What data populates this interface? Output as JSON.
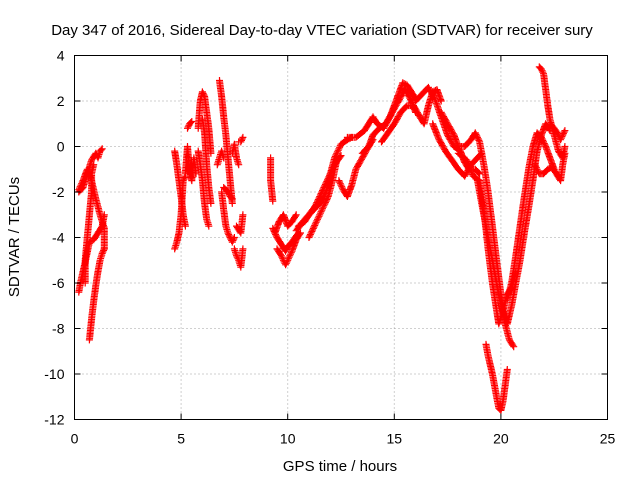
{
  "chart_data": {
    "type": "scatter",
    "title": "Day 347 of 2016, Sidereal Day-to-day VTEC variation (SDTVAR) for receiver sury",
    "xlabel": "GPS time / hours",
    "ylabel": "SDTVAR / TECUs",
    "xlim": [
      0,
      25
    ],
    "ylim": [
      -12,
      4
    ],
    "xticks": [
      0,
      5,
      10,
      15,
      20,
      25
    ],
    "yticks": [
      -12,
      -10,
      -8,
      -6,
      -4,
      -2,
      0,
      2,
      4
    ],
    "grid": true,
    "marker": "plus",
    "color": "#ff0000",
    "series_segments": [
      [
        [
          0.2,
          -2.0
        ],
        [
          0.4,
          -1.8
        ],
        [
          0.6,
          -1.2
        ],
        [
          0.8,
          -0.6
        ],
        [
          1.0,
          -0.3
        ],
        [
          1.1,
          -0.5
        ],
        [
          1.2,
          -0.2
        ],
        [
          1.3,
          -0.1
        ]
      ],
      [
        [
          0.2,
          -1.9
        ],
        [
          0.4,
          -1.5
        ],
        [
          0.6,
          -1.0
        ],
        [
          0.8,
          -1.5
        ],
        [
          1.0,
          -2.3
        ],
        [
          1.2,
          -3.0
        ],
        [
          1.4,
          -3.6
        ],
        [
          1.4,
          -4.5
        ]
      ],
      [
        [
          0.2,
          -6.4
        ],
        [
          0.3,
          -5.9
        ],
        [
          0.5,
          -5.1
        ],
        [
          0.7,
          -4.2
        ],
        [
          0.9,
          -4.1
        ],
        [
          1.1,
          -3.8
        ],
        [
          1.3,
          -3.5
        ],
        [
          1.4,
          -3.0
        ]
      ],
      [
        [
          0.7,
          -8.5
        ],
        [
          0.8,
          -7.6
        ],
        [
          0.9,
          -6.8
        ],
        [
          1.0,
          -6.1
        ],
        [
          1.1,
          -5.5
        ],
        [
          1.2,
          -5.0
        ],
        [
          1.3,
          -4.7
        ],
        [
          1.4,
          -4.5
        ]
      ],
      [
        [
          0.5,
          -6.0
        ],
        [
          0.5,
          -5.0
        ],
        [
          0.6,
          -4.0
        ],
        [
          0.7,
          -3.0
        ],
        [
          0.8,
          -2.0
        ],
        [
          0.8,
          -1.2
        ],
        [
          0.9,
          -0.8
        ]
      ],
      [
        [
          4.7,
          -0.2
        ],
        [
          4.8,
          -0.8
        ],
        [
          4.9,
          -1.5
        ],
        [
          5.0,
          -2.2
        ],
        [
          5.1,
          -3.0
        ],
        [
          5.2,
          -3.5
        ]
      ],
      [
        [
          4.7,
          -4.5
        ],
        [
          4.8,
          -4.2
        ],
        [
          4.9,
          -3.8
        ],
        [
          5.0,
          -3.0
        ],
        [
          5.1,
          -1.5
        ],
        [
          5.2,
          -1.3
        ]
      ],
      [
        [
          5.2,
          -1.2
        ],
        [
          5.3,
          0.0
        ],
        [
          5.4,
          -1.1
        ],
        [
          5.5,
          -1.5
        ],
        [
          5.6,
          -0.5
        ],
        [
          5.7,
          -1.2
        ]
      ],
      [
        [
          5.3,
          0.8
        ],
        [
          5.4,
          1.0
        ],
        [
          5.5,
          1.1
        ]
      ],
      [
        [
          5.8,
          0.8
        ],
        [
          5.9,
          2.0
        ],
        [
          6.0,
          2.4
        ],
        [
          6.1,
          2.2
        ],
        [
          6.2,
          1.5
        ],
        [
          6.3,
          0.8
        ],
        [
          6.4,
          -0.3
        ]
      ],
      [
        [
          5.8,
          -0.2
        ],
        [
          5.9,
          -0.8
        ],
        [
          6.0,
          -1.5
        ],
        [
          6.1,
          -2.5
        ],
        [
          6.2,
          -3.2
        ],
        [
          6.3,
          -3.5
        ]
      ],
      [
        [
          6.0,
          1.2
        ],
        [
          6.1,
          0.6
        ],
        [
          6.2,
          -0.8
        ],
        [
          6.3,
          -1.8
        ],
        [
          6.4,
          -2.5
        ]
      ],
      [
        [
          6.7,
          -0.8
        ],
        [
          6.8,
          -0.5
        ],
        [
          6.9,
          -0.2
        ],
        [
          7.0,
          -0.5
        ]
      ],
      [
        [
          6.8,
          2.9
        ],
        [
          6.9,
          2.2
        ],
        [
          7.0,
          1.3
        ],
        [
          7.1,
          0.5
        ],
        [
          7.2,
          -0.5
        ],
        [
          7.3,
          -1.5
        ],
        [
          7.4,
          -2.5
        ]
      ],
      [
        [
          6.9,
          -2.0
        ],
        [
          7.0,
          -2.8
        ],
        [
          7.1,
          -3.5
        ],
        [
          7.2,
          -3.8
        ],
        [
          7.4,
          -4.2
        ],
        [
          7.5,
          -4.0
        ]
      ],
      [
        [
          7.0,
          -1.8
        ],
        [
          7.2,
          -2.0
        ],
        [
          7.3,
          -2.2
        ],
        [
          7.4,
          -2.3
        ]
      ],
      [
        [
          7.4,
          -0.3
        ],
        [
          7.5,
          0.1
        ],
        [
          7.6,
          -0.5
        ],
        [
          7.7,
          -0.8
        ]
      ],
      [
        [
          7.5,
          -4.5
        ],
        [
          7.6,
          -4.8
        ],
        [
          7.7,
          -5.0
        ],
        [
          7.8,
          -5.3
        ],
        [
          7.9,
          -4.5
        ]
      ],
      [
        [
          7.6,
          -3.5
        ],
        [
          7.8,
          -3.8
        ],
        [
          7.9,
          -3.0
        ]
      ],
      [
        [
          7.7,
          0.2
        ],
        [
          7.8,
          0.2
        ],
        [
          7.9,
          0.4
        ]
      ],
      [
        [
          9.2,
          -0.5
        ],
        [
          9.2,
          -1.5
        ],
        [
          9.3,
          -2.4
        ]
      ],
      [
        [
          9.3,
          -3.6
        ],
        [
          9.5,
          -4.0
        ],
        [
          9.7,
          -4.3
        ],
        [
          9.9,
          -4.6
        ],
        [
          10.0,
          -4.4
        ],
        [
          10.2,
          -4.2
        ],
        [
          10.5,
          -3.8
        ]
      ],
      [
        [
          9.4,
          -3.8
        ],
        [
          9.6,
          -3.3
        ],
        [
          9.8,
          -3.0
        ],
        [
          10.0,
          -3.5
        ],
        [
          10.2,
          -3.3
        ],
        [
          10.4,
          -3.0
        ]
      ],
      [
        [
          9.5,
          -4.5
        ],
        [
          9.7,
          -4.8
        ],
        [
          9.9,
          -5.2
        ],
        [
          10.0,
          -5.0
        ],
        [
          10.2,
          -4.6
        ],
        [
          10.4,
          -4.1
        ],
        [
          10.6,
          -3.8
        ]
      ],
      [
        [
          10.4,
          -3.7
        ],
        [
          10.8,
          -3.2
        ],
        [
          11.2,
          -2.8
        ],
        [
          11.5,
          -2.5
        ],
        [
          11.8,
          -2.0
        ],
        [
          12.0,
          -1.2
        ],
        [
          12.2,
          -0.5
        ],
        [
          12.5,
          0.1
        ],
        [
          12.8,
          0.3
        ],
        [
          13.0,
          0.4
        ]
      ],
      [
        [
          10.5,
          -3.5
        ],
        [
          10.8,
          -3.3
        ],
        [
          11.0,
          -3.0
        ],
        [
          11.3,
          -2.6
        ],
        [
          11.6,
          -2.0
        ],
        [
          11.9,
          -1.4
        ],
        [
          12.2,
          -0.8
        ],
        [
          12.5,
          -0.4
        ]
      ],
      [
        [
          11.0,
          -4.0
        ],
        [
          11.3,
          -3.4
        ],
        [
          11.6,
          -2.8
        ],
        [
          11.9,
          -2.2
        ],
        [
          12.1,
          -1.5
        ],
        [
          12.3,
          -0.6
        ]
      ],
      [
        [
          12.4,
          -1.5
        ],
        [
          12.6,
          -1.9
        ],
        [
          12.8,
          -2.2
        ],
        [
          13.0,
          -1.7
        ],
        [
          13.2,
          -1.0
        ],
        [
          13.5,
          -0.5
        ],
        [
          13.8,
          0.0
        ],
        [
          14.0,
          0.3
        ]
      ],
      [
        [
          12.8,
          0.4
        ],
        [
          13.2,
          0.4
        ],
        [
          13.6,
          0.7
        ],
        [
          13.8,
          1.0
        ],
        [
          14.0,
          1.3
        ],
        [
          14.2,
          1.0
        ],
        [
          14.5,
          0.8
        ],
        [
          14.8,
          1.3
        ],
        [
          15.0,
          1.8
        ],
        [
          15.2,
          2.3
        ],
        [
          15.4,
          2.8
        ],
        [
          15.6,
          2.7
        ],
        [
          15.8,
          2.4
        ],
        [
          16.0,
          2.1
        ]
      ],
      [
        [
          13.5,
          -0.3
        ],
        [
          13.8,
          0.0
        ],
        [
          14.0,
          0.5
        ],
        [
          14.3,
          0.8
        ],
        [
          14.6,
          1.0
        ],
        [
          14.9,
          1.5
        ],
        [
          15.2,
          2.0
        ],
        [
          15.5,
          2.5
        ],
        [
          15.8,
          2.0
        ],
        [
          16.0,
          1.5
        ]
      ],
      [
        [
          14.4,
          0.2
        ],
        [
          14.7,
          0.6
        ],
        [
          15.0,
          1.0
        ],
        [
          15.3,
          1.5
        ],
        [
          15.6,
          1.8
        ],
        [
          15.9,
          1.8
        ],
        [
          16.2,
          1.3
        ],
        [
          16.4,
          1.0
        ],
        [
          16.6,
          1.8
        ],
        [
          16.8,
          2.4
        ],
        [
          17.0,
          2.5
        ],
        [
          17.2,
          2.0
        ]
      ],
      [
        [
          16.0,
          2.0
        ],
        [
          16.3,
          2.3
        ],
        [
          16.6,
          2.6
        ],
        [
          16.9,
          2.1
        ],
        [
          17.2,
          1.3
        ],
        [
          17.5,
          0.5
        ],
        [
          17.8,
          0.0
        ],
        [
          18.1,
          -0.2
        ],
        [
          18.3,
          -0.7
        ],
        [
          18.5,
          -1.0
        ],
        [
          18.8,
          -1.0
        ],
        [
          19.0,
          -1.2
        ]
      ],
      [
        [
          16.8,
          1.0
        ],
        [
          17.1,
          0.3
        ],
        [
          17.4,
          -0.2
        ],
        [
          17.7,
          -0.6
        ],
        [
          18.0,
          -1.0
        ],
        [
          18.3,
          -1.3
        ],
        [
          18.6,
          -0.8
        ],
        [
          18.9,
          -0.5
        ],
        [
          19.1,
          -0.3
        ]
      ],
      [
        [
          17.2,
          1.5
        ],
        [
          17.5,
          1.0
        ],
        [
          17.8,
          0.5
        ],
        [
          18.0,
          0.0
        ],
        [
          18.3,
          0.0
        ],
        [
          18.6,
          0.3
        ],
        [
          18.8,
          0.6
        ],
        [
          19.0,
          0.2
        ],
        [
          19.2,
          -0.8
        ],
        [
          19.4,
          -2.0
        ],
        [
          19.6,
          -3.5
        ],
        [
          19.8,
          -5.0
        ],
        [
          20.0,
          -6.5
        ],
        [
          20.2,
          -7.8
        ],
        [
          20.4,
          -8.5
        ],
        [
          20.6,
          -8.8
        ]
      ],
      [
        [
          18.0,
          -0.3
        ],
        [
          18.4,
          -0.6
        ],
        [
          18.7,
          -1.3
        ],
        [
          19.0,
          -1.5
        ],
        [
          19.2,
          -2.8
        ],
        [
          19.4,
          -4.5
        ],
        [
          19.6,
          -6.0
        ],
        [
          19.8,
          -7.2
        ],
        [
          19.9,
          -7.8
        ],
        [
          20.1,
          -7.2
        ],
        [
          20.3,
          -6.5
        ],
        [
          20.5,
          -6.2
        ],
        [
          20.7,
          -5.5
        ]
      ],
      [
        [
          19.3,
          -8.7
        ],
        [
          19.4,
          -9.2
        ],
        [
          19.6,
          -10.0
        ],
        [
          19.8,
          -11.0
        ],
        [
          19.9,
          -11.5
        ],
        [
          20.0,
          -11.6
        ],
        [
          20.1,
          -11.2
        ],
        [
          20.2,
          -10.5
        ],
        [
          20.3,
          -9.8
        ]
      ],
      [
        [
          18.9,
          -1.5
        ],
        [
          19.1,
          -2.5
        ],
        [
          19.3,
          -3.5
        ],
        [
          19.5,
          -4.5
        ],
        [
          19.7,
          -5.5
        ],
        [
          19.9,
          -6.5
        ],
        [
          20.1,
          -7.3
        ],
        [
          20.3,
          -7.8
        ],
        [
          20.5,
          -7.0
        ],
        [
          20.7,
          -6.0
        ],
        [
          20.9,
          -5.0
        ],
        [
          21.1,
          -3.8
        ],
        [
          21.3,
          -2.7
        ],
        [
          21.5,
          -1.5
        ],
        [
          21.7,
          -0.2
        ],
        [
          21.9,
          0.5
        ],
        [
          22.1,
          1.0
        ],
        [
          22.3,
          0.7
        ]
      ],
      [
        [
          20.3,
          -6.7
        ],
        [
          20.5,
          -6.0
        ],
        [
          20.7,
          -4.8
        ],
        [
          20.9,
          -3.5
        ],
        [
          21.1,
          -2.2
        ],
        [
          21.3,
          -1.0
        ],
        [
          21.5,
          0.0
        ],
        [
          21.7,
          0.6
        ],
        [
          21.9,
          0.4
        ],
        [
          22.1,
          0.0
        ],
        [
          22.3,
          -0.5
        ],
        [
          22.5,
          -1.0
        ]
      ],
      [
        [
          21.8,
          3.5
        ],
        [
          21.9,
          3.4
        ],
        [
          22.0,
          3.2
        ],
        [
          22.1,
          2.5
        ],
        [
          22.2,
          1.8
        ],
        [
          22.3,
          1.2
        ],
        [
          22.5,
          0.5
        ],
        [
          22.7,
          -0.2
        ],
        [
          22.9,
          -0.5
        ],
        [
          23.0,
          0.0
        ]
      ],
      [
        [
          21.6,
          -0.8
        ],
        [
          21.8,
          -1.2
        ],
        [
          22.0,
          -1.2
        ],
        [
          22.2,
          -1.0
        ],
        [
          22.4,
          -0.9
        ],
        [
          22.6,
          -1.2
        ],
        [
          22.8,
          -1.5
        ],
        [
          22.9,
          -0.8
        ],
        [
          23.0,
          -0.3
        ]
      ],
      [
        [
          22.3,
          1.0
        ],
        [
          22.5,
          0.8
        ],
        [
          22.7,
          0.5
        ],
        [
          22.8,
          0.3
        ],
        [
          23.0,
          0.7
        ]
      ]
    ]
  }
}
